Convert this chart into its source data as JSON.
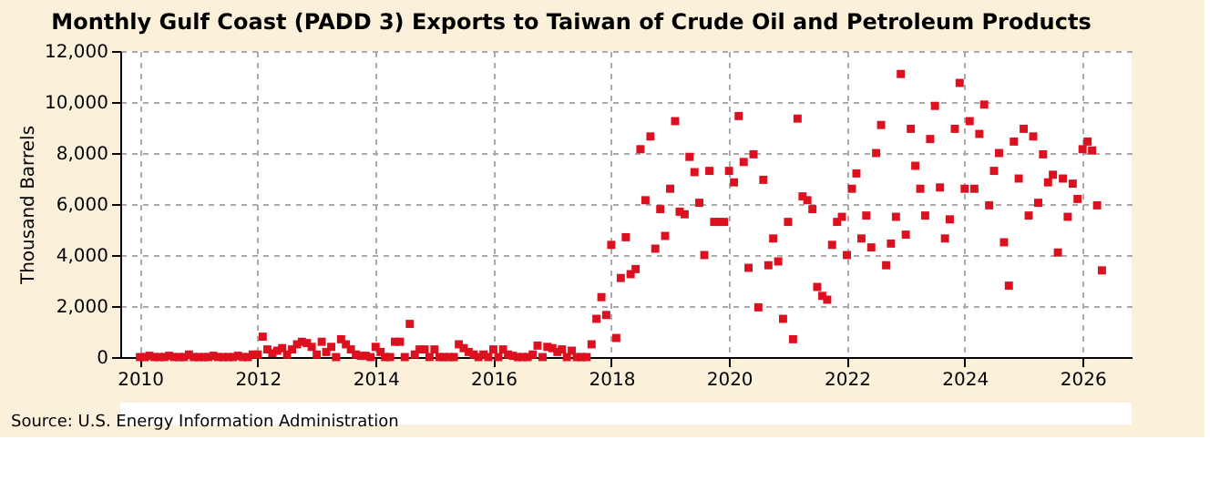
{
  "chart_data": {
    "type": "scatter",
    "title": "Monthly Gulf Coast (PADD 3) Exports to Taiwan of Crude Oil and Petroleum Products",
    "ylabel": "Thousand Barrels",
    "annotations": [
      "Source: U.S. Energy Information Administration"
    ],
    "marker": "square",
    "grid": true,
    "xlim": [
      "2009-09",
      "2026-11"
    ],
    "xticks": [
      "2010",
      "2012",
      "2014",
      "2016",
      "2018",
      "2020",
      "2022",
      "2024",
      "2026"
    ],
    "ylim": [
      0,
      12000
    ],
    "yticks": [
      0,
      {
        "value": 2000,
        "label": "2,000"
      },
      {
        "value": 4000,
        "label": "4,000"
      },
      {
        "value": 6000,
        "label": "6,000"
      },
      {
        "value": 8000,
        "label": "8,000"
      },
      {
        "value": 10000,
        "label": "10,000"
      },
      {
        "value": 12000,
        "label": "12,000"
      }
    ],
    "series": [
      {
        "color": "#dd1020",
        "x": [
          "2010-01",
          "2010-02",
          "2010-03",
          "2010-04",
          "2010-05",
          "2010-06",
          "2010-07",
          "2010-08",
          "2010-09",
          "2010-10",
          "2010-11",
          "2010-12",
          "2011-01",
          "2011-02",
          "2011-03",
          "2011-04",
          "2011-05",
          "2011-06",
          "2011-07",
          "2011-08",
          "2011-09",
          "2011-10",
          "2011-11",
          "2011-12",
          "2012-01",
          "2012-02",
          "2012-03",
          "2012-04",
          "2012-05",
          "2012-06",
          "2012-07",
          "2012-08",
          "2012-09",
          "2012-10",
          "2012-11",
          "2012-12",
          "2013-01",
          "2013-02",
          "2013-03",
          "2013-04",
          "2013-05",
          "2013-06",
          "2013-07",
          "2013-08",
          "2013-09",
          "2013-10",
          "2013-11",
          "2013-12",
          "2014-01",
          "2014-02",
          "2014-03",
          "2014-04",
          "2014-05",
          "2014-06",
          "2014-07",
          "2014-08",
          "2014-09",
          "2014-10",
          "2014-11",
          "2014-12",
          "2015-01",
          "2015-02",
          "2015-03",
          "2015-04",
          "2015-05",
          "2015-06",
          "2015-07",
          "2015-08",
          "2015-09",
          "2015-10",
          "2015-11",
          "2015-12",
          "2016-01",
          "2016-02",
          "2016-03",
          "2016-04",
          "2016-05",
          "2016-06",
          "2016-07",
          "2016-08",
          "2016-09",
          "2016-10",
          "2016-11",
          "2016-12",
          "2017-01",
          "2017-02",
          "2017-03",
          "2017-04",
          "2017-05",
          "2017-06",
          "2017-07",
          "2017-08",
          "2017-09",
          "2017-10",
          "2017-11",
          "2017-12",
          "2018-01",
          "2018-02",
          "2018-03",
          "2018-04",
          "2018-05",
          "2018-06",
          "2018-07",
          "2018-08",
          "2018-09",
          "2018-10",
          "2018-11",
          "2018-12",
          "2019-01",
          "2019-02",
          "2019-03",
          "2019-04",
          "2019-05",
          "2019-06",
          "2019-07",
          "2019-08",
          "2019-09",
          "2019-10",
          "2019-11",
          "2019-12",
          "2020-01",
          "2020-02",
          "2020-03",
          "2020-04",
          "2020-05",
          "2020-06",
          "2020-07",
          "2020-08",
          "2020-09",
          "2020-10",
          "2020-11",
          "2020-12",
          "2021-01",
          "2021-02",
          "2021-03",
          "2021-04",
          "2021-05",
          "2021-06",
          "2021-07",
          "2021-08",
          "2021-09",
          "2021-10",
          "2021-11",
          "2021-12",
          "2022-01",
          "2022-02",
          "2022-03",
          "2022-04",
          "2022-05",
          "2022-06",
          "2022-07",
          "2022-08",
          "2022-09",
          "2022-10",
          "2022-11",
          "2022-12",
          "2023-01",
          "2023-02",
          "2023-03",
          "2023-04",
          "2023-05",
          "2023-06",
          "2023-07",
          "2023-08",
          "2023-09",
          "2023-10",
          "2023-11",
          "2023-12",
          "2024-01",
          "2024-02",
          "2024-03",
          "2024-04",
          "2024-05",
          "2024-06",
          "2024-07",
          "2024-08",
          "2024-09",
          "2024-10",
          "2024-11",
          "2024-12",
          "2025-01",
          "2025-02",
          "2025-03",
          "2025-04",
          "2025-05",
          "2025-06",
          "2025-07",
          "2025-08",
          "2025-09",
          "2025-10",
          "2025-11",
          "2025-12",
          "2026-01",
          "2026-02",
          "2026-03",
          "2026-04",
          "2026-05"
        ],
        "values": [
          0,
          0,
          50,
          0,
          0,
          0,
          50,
          0,
          0,
          0,
          100,
          0,
          0,
          0,
          0,
          50,
          0,
          0,
          0,
          0,
          50,
          0,
          0,
          100,
          100,
          800,
          300,
          150,
          250,
          350,
          100,
          300,
          500,
          600,
          550,
          400,
          100,
          600,
          200,
          400,
          0,
          700,
          500,
          300,
          100,
          50,
          50,
          0,
          400,
          200,
          0,
          0,
          600,
          600,
          0,
          1300,
          100,
          300,
          300,
          0,
          300,
          0,
          0,
          0,
          0,
          500,
          350,
          200,
          100,
          0,
          100,
          0,
          300,
          0,
          300,
          100,
          50,
          0,
          0,
          0,
          100,
          450,
          0,
          400,
          350,
          200,
          300,
          0,
          250,
          0,
          0,
          0,
          500,
          1500,
          2350,
          1650,
          4400,
          750,
          3100,
          4700,
          3250,
          3450,
          8150,
          6150,
          8650,
          4250,
          5800,
          4750,
          6600,
          9250,
          5700,
          5600,
          7850,
          7250,
          6050,
          4000,
          7300,
          5300,
          5300,
          5300,
          7300,
          6850,
          9450,
          7650,
          3500,
          7950,
          1950,
          6950,
          3600,
          4650,
          3750,
          1500,
          5300,
          700,
          9350,
          6300,
          6150,
          5800,
          2750,
          2400,
          2250,
          4400,
          5300,
          5500,
          4000,
          6600,
          7200,
          4650,
          5550,
          4300,
          8000,
          9100,
          3600,
          4450,
          5500,
          11100,
          4800,
          8950,
          7500,
          6600,
          5550,
          8550,
          9850,
          6650,
          4650,
          5400,
          8950,
          10750,
          6600,
          9250,
          6600,
          8750,
          9900,
          5950,
          7300,
          8000,
          4500,
          2800,
          8450,
          7000,
          8950,
          5550,
          8650,
          6050,
          7950,
          6850,
          7150,
          4100,
          7000,
          5500,
          6800,
          6200,
          8150,
          8450,
          8100,
          5950,
          3400
        ]
      }
    ]
  }
}
